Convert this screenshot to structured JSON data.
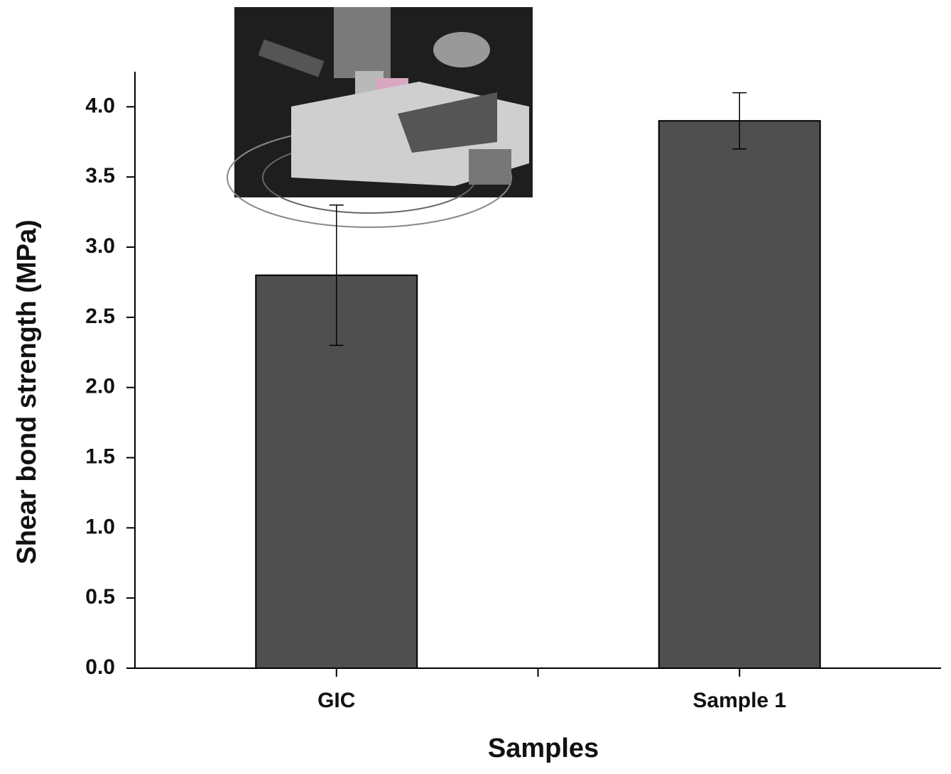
{
  "chart_data": {
    "type": "bar",
    "x_label": "Samples",
    "y_label": "Shear bond strength (MPa)",
    "categories": [
      "GIC",
      "Sample 1"
    ],
    "values": [
      2.8,
      3.9
    ],
    "errors": [
      0.5,
      0.2
    ],
    "color": "#4f4f4f",
    "ylim": [
      0,
      4.25
    ],
    "yticks": [
      {
        "value": 0,
        "label": "0.0"
      },
      0.5,
      {
        "value": 1,
        "label": "1.0"
      },
      1.5,
      {
        "value": 2,
        "label": "2.0"
      },
      2.5,
      {
        "value": 3,
        "label": "3.0"
      },
      3.5,
      {
        "value": 4,
        "label": "4.0"
      }
    ],
    "grid": false
  }
}
